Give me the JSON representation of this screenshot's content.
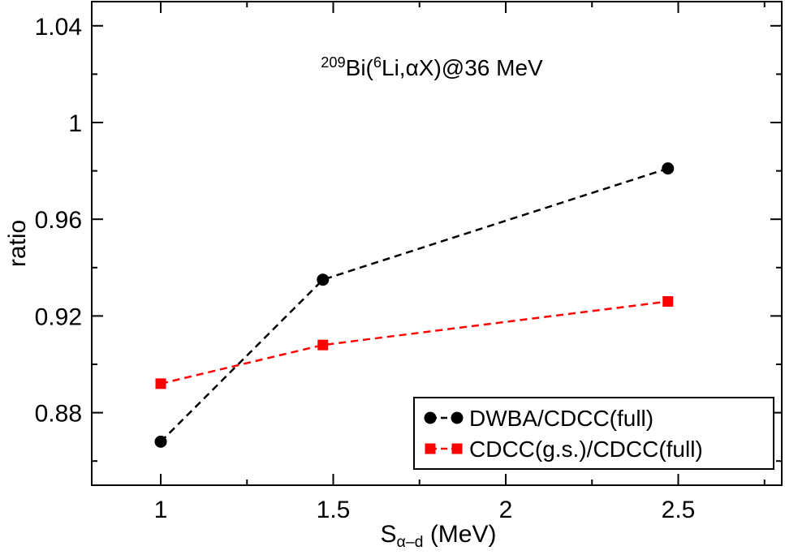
{
  "chart_data": {
    "type": "line",
    "title": [
      {
        "text": "209",
        "sup": true
      },
      {
        "text": "Bi("
      },
      {
        "text": "6",
        "sup": true
      },
      {
        "text": "Li,αX)@36 MeV"
      }
    ],
    "x_label": [
      {
        "text": "S"
      },
      {
        "text": "α–d",
        "sub": true
      },
      {
        "text": " (MeV)"
      }
    ],
    "y_label": "ratio",
    "xlim": [
      0.8,
      2.8
    ],
    "xticks": [
      1,
      1.5,
      2,
      2.5
    ],
    "xminorticks": [
      1.25,
      1.75,
      2.25,
      2.75
    ],
    "ylim": [
      0.85,
      1.05
    ],
    "yticks": [
      {
        "value": 0.88,
        "label": "0.88"
      },
      {
        "value": 0.92,
        "label": "0.92"
      },
      {
        "value": 0.96,
        "label": "0.96"
      },
      1,
      {
        "value": 1.04,
        "label": "1.04"
      }
    ],
    "yminorticks": [
      0.86,
      0.9,
      0.94,
      0.98,
      1.02
    ],
    "legend": "lower right",
    "series": [
      {
        "name": "DWBA/CDCC(full)",
        "color": "#000000",
        "marker": "circle",
        "x": [
          1,
          1.47,
          2.47
        ],
        "values": [
          0.868,
          0.935,
          0.981
        ]
      },
      {
        "name": "CDCC(g.s.)/CDCC(full)",
        "color": "#ff0000",
        "marker": "square",
        "x": [
          1,
          1.47,
          2.47
        ],
        "values": [
          0.892,
          0.908,
          0.926
        ]
      }
    ]
  }
}
